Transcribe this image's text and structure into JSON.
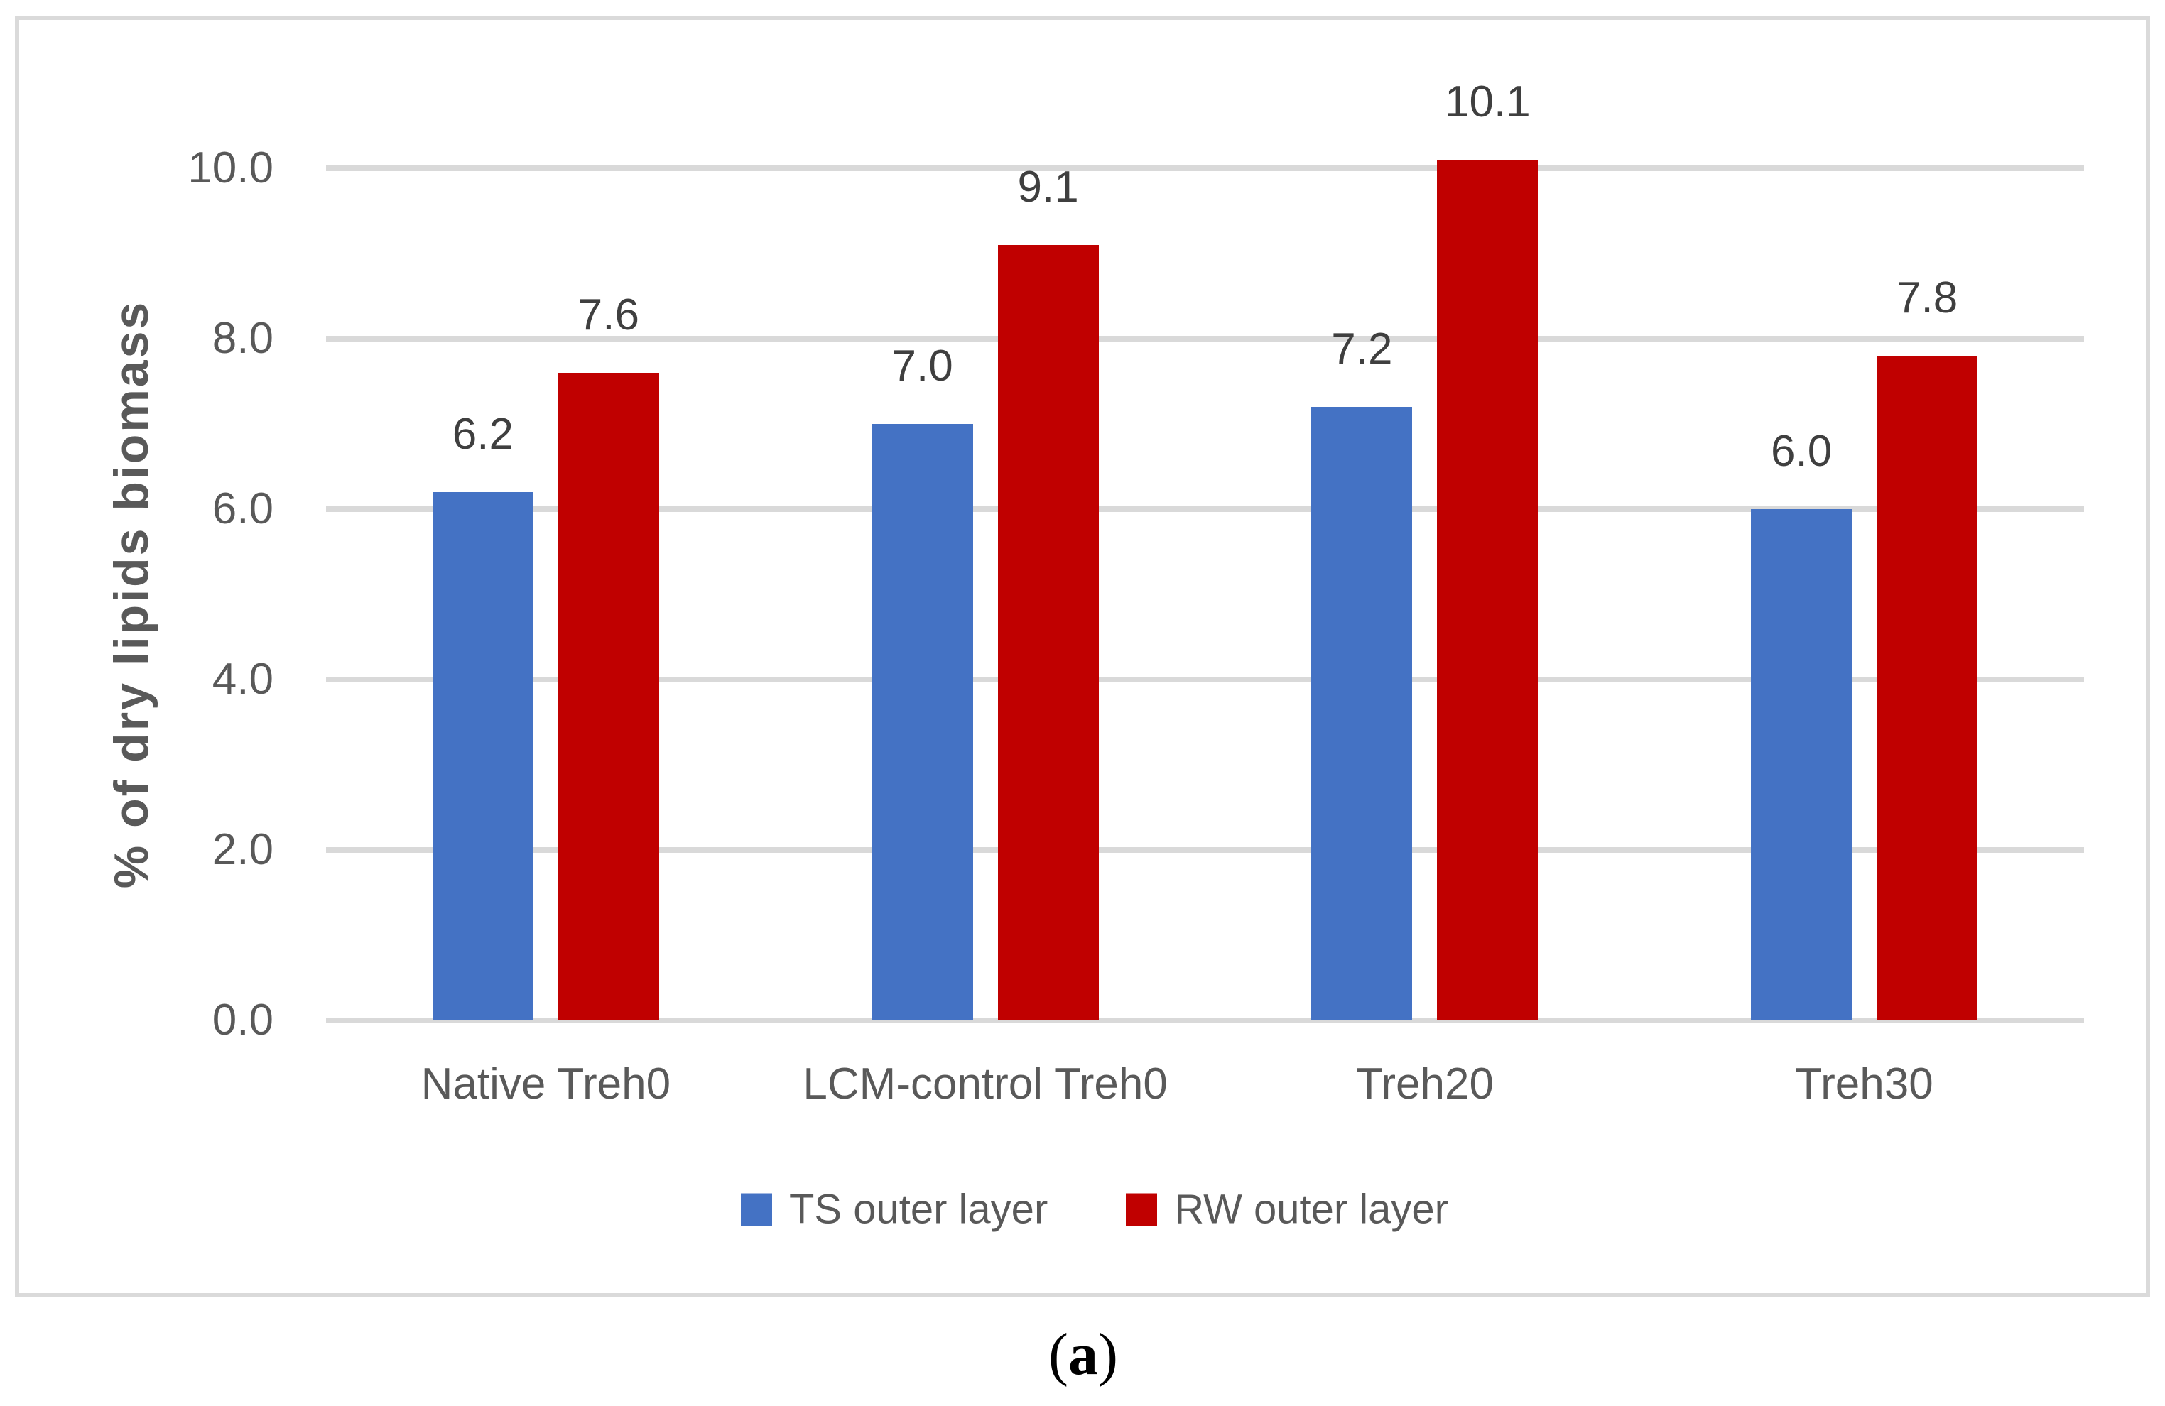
{
  "figure": {
    "caption": {
      "open": "(",
      "letter": "a",
      "close": ")"
    }
  },
  "chart_data": {
    "type": "bar",
    "title": "",
    "xlabel": "",
    "ylabel": "% of dry lipids biomass",
    "categories": [
      "Native Treh0",
      "LCM-control Treh0",
      "Treh20",
      "Treh30"
    ],
    "series": [
      {
        "name": "TS outer layer",
        "color": "#4472C4",
        "values": [
          6.2,
          7.0,
          7.2,
          6.0
        ],
        "labels": [
          "6.2",
          "7.0",
          "7.2",
          "6.0"
        ]
      },
      {
        "name": "RW outer layer",
        "color": "#C00000",
        "values": [
          7.6,
          9.1,
          10.1,
          7.8
        ],
        "labels": [
          "7.6",
          "9.1",
          "10.1",
          "7.8"
        ]
      }
    ],
    "ylim": [
      0,
      10
    ],
    "yticks": [
      {
        "value": 0,
        "label": "0.0"
      },
      {
        "value": 2,
        "label": "2.0"
      },
      {
        "value": 4,
        "label": "4.0"
      },
      {
        "value": 6,
        "label": "6.0"
      },
      {
        "value": 8,
        "label": "8.0"
      },
      {
        "value": 10,
        "label": "10.0"
      }
    ],
    "grid": true,
    "legend_position": "bottom",
    "colors": {
      "gridline": "#D9D9D9",
      "axis_line": "#D9D9D9",
      "axis_text": "#595959",
      "data_label": "#3F3F3F",
      "frame_border": "#DADADA"
    }
  }
}
